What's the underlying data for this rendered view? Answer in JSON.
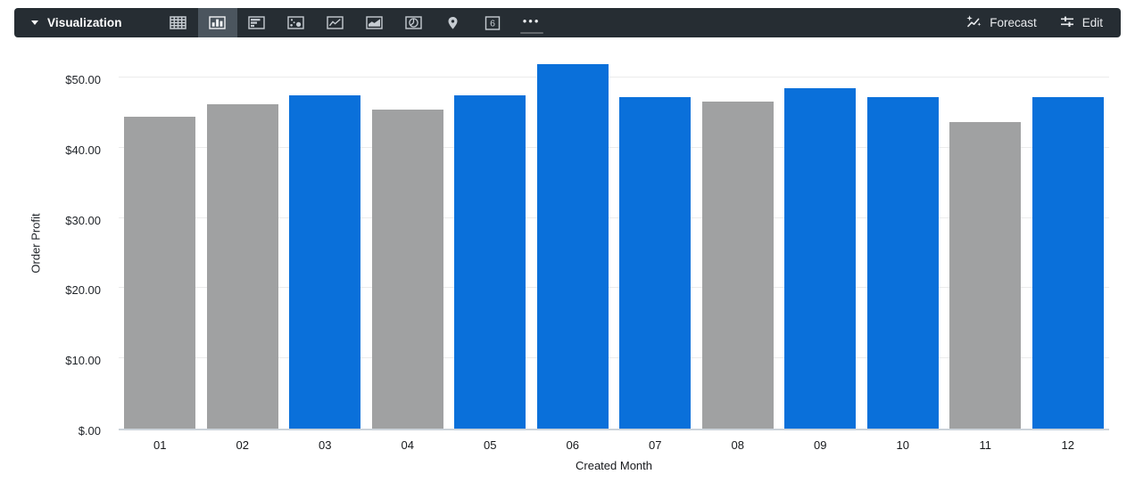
{
  "toolbar": {
    "bg": "#262d33",
    "selected_bg": "#4b555e",
    "title": "Visualization",
    "icons": [
      "table-icon",
      "column-chart-icon",
      "row-chart-icon",
      "scatter-icon",
      "line-chart-icon",
      "area-chart-icon",
      "pie-chart-icon",
      "map-pin-icon",
      "single-value-icon",
      "more-icon"
    ],
    "selected_icon": "column-chart-icon",
    "single_value_glyph": "6",
    "more_glyph": "•••",
    "forecast_label": "Forecast",
    "edit_label": "Edit"
  },
  "chart_data": {
    "type": "bar",
    "title": "",
    "xlabel": "Created Month",
    "ylabel": "Order Profit",
    "categories": [
      "01",
      "02",
      "03",
      "04",
      "05",
      "06",
      "07",
      "08",
      "09",
      "10",
      "11",
      "12"
    ],
    "values": [
      44.4,
      46.2,
      47.4,
      45.4,
      47.4,
      51.9,
      47.2,
      46.5,
      48.5,
      47.2,
      43.6,
      47.2
    ],
    "bar_colors": [
      "gray",
      "gray",
      "blue",
      "gray",
      "blue",
      "blue",
      "blue",
      "gray",
      "blue",
      "blue",
      "gray",
      "blue"
    ],
    "palette": {
      "blue": "#0a70da",
      "gray": "#a0a1a2"
    },
    "y_ticks": [
      {
        "label": "$.00",
        "value": 0
      },
      {
        "label": "$10.00",
        "value": 10
      },
      {
        "label": "$20.00",
        "value": 20
      },
      {
        "label": "$30.00",
        "value": 30
      },
      {
        "label": "$40.00",
        "value": 40
      },
      {
        "label": "$50.00",
        "value": 50
      }
    ],
    "ylim": [
      0,
      52.9
    ],
    "grid": true,
    "legend": "none",
    "grid_color": "#ececec",
    "axis_color": "#ccd3da"
  }
}
